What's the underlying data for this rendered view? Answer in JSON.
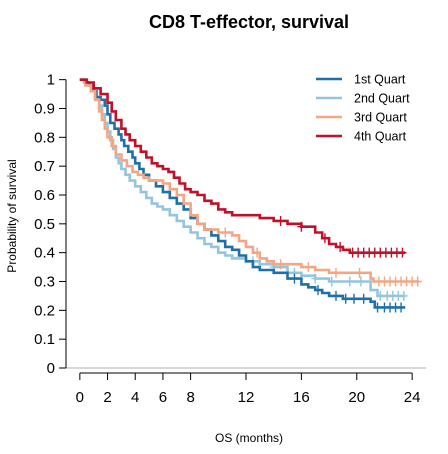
{
  "chart_data": {
    "type": "line",
    "subtype": "kaplan-meier",
    "title": "CD8 T-effector, survival",
    "xlabel": "OS (months)",
    "ylabel": "Probability of survival",
    "xlim": [
      -1,
      25
    ],
    "ylim": [
      0,
      1.03
    ],
    "xticks": [
      0,
      2,
      4,
      6,
      8,
      12,
      16,
      20,
      24
    ],
    "yticks": [
      0,
      0.1,
      0.2,
      0.3,
      0.4,
      0.5,
      0.6,
      0.7,
      0.8,
      0.9,
      1
    ],
    "ytick_labels": [
      "0",
      "0.1",
      "0.2",
      "0.3",
      "0.4",
      "0.5",
      "0.6",
      "0.7",
      "0.8",
      "0.9",
      "1"
    ],
    "reference_line_y": 0,
    "legend_position": "top-right",
    "grid": false,
    "series": [
      {
        "name": "1st Quart",
        "color": "#1f6fa8",
        "steps": [
          [
            0,
            1
          ],
          [
            0.4,
            0.99
          ],
          [
            0.7,
            0.98
          ],
          [
            0.9,
            0.97
          ],
          [
            1,
            0.96
          ],
          [
            1.2,
            0.94
          ],
          [
            1.5,
            0.93
          ],
          [
            1.8,
            0.91
          ],
          [
            2,
            0.88
          ],
          [
            2.2,
            0.85
          ],
          [
            2.5,
            0.83
          ],
          [
            2.8,
            0.81
          ],
          [
            3,
            0.79
          ],
          [
            3.2,
            0.77
          ],
          [
            3.5,
            0.75
          ],
          [
            3.8,
            0.73
          ],
          [
            4,
            0.71
          ],
          [
            4.3,
            0.69
          ],
          [
            4.6,
            0.67
          ],
          [
            5,
            0.65
          ],
          [
            5.5,
            0.63
          ],
          [
            6,
            0.61
          ],
          [
            6.5,
            0.59
          ],
          [
            7,
            0.57
          ],
          [
            7.5,
            0.55
          ],
          [
            8,
            0.52
          ],
          [
            8.5,
            0.5
          ],
          [
            9,
            0.48
          ],
          [
            9.5,
            0.46
          ],
          [
            10,
            0.44
          ],
          [
            10.5,
            0.42
          ],
          [
            11,
            0.41
          ],
          [
            11.5,
            0.39
          ],
          [
            12,
            0.37
          ],
          [
            12.5,
            0.35
          ],
          [
            13,
            0.34
          ],
          [
            14,
            0.33
          ],
          [
            15,
            0.31
          ],
          [
            16,
            0.29
          ],
          [
            16.5,
            0.28
          ],
          [
            17,
            0.27
          ],
          [
            17.5,
            0.26
          ],
          [
            18,
            0.25
          ],
          [
            19,
            0.24
          ],
          [
            20,
            0.24
          ],
          [
            21,
            0.23
          ],
          [
            21.3,
            0.21
          ],
          [
            21.8,
            0.21
          ],
          [
            23.5,
            0.21
          ]
        ],
        "censor_x": [
          15.5,
          17.2,
          18.5,
          19.2,
          19.8,
          20.5,
          21.5,
          22,
          22.4,
          22.8,
          23.2
        ]
      },
      {
        "name": "2nd Quart",
        "color": "#93c5de",
        "steps": [
          [
            0,
            1
          ],
          [
            0.3,
            0.99
          ],
          [
            0.6,
            0.98
          ],
          [
            0.9,
            0.96
          ],
          [
            1.1,
            0.94
          ],
          [
            1.4,
            0.91
          ],
          [
            1.6,
            0.88
          ],
          [
            1.8,
            0.85
          ],
          [
            2,
            0.82
          ],
          [
            2.2,
            0.79
          ],
          [
            2.4,
            0.76
          ],
          [
            2.6,
            0.73
          ],
          [
            2.8,
            0.71
          ],
          [
            3,
            0.69
          ],
          [
            3.3,
            0.67
          ],
          [
            3.6,
            0.65
          ],
          [
            4,
            0.63
          ],
          [
            4.4,
            0.61
          ],
          [
            4.8,
            0.59
          ],
          [
            5.2,
            0.57
          ],
          [
            5.6,
            0.56
          ],
          [
            6,
            0.55
          ],
          [
            6.5,
            0.53
          ],
          [
            7,
            0.51
          ],
          [
            7.5,
            0.49
          ],
          [
            8,
            0.47
          ],
          [
            8.5,
            0.45
          ],
          [
            9,
            0.43
          ],
          [
            9.5,
            0.42
          ],
          [
            10,
            0.4
          ],
          [
            10.5,
            0.39
          ],
          [
            11,
            0.38
          ],
          [
            12,
            0.37
          ],
          [
            13,
            0.36
          ],
          [
            14,
            0.35
          ],
          [
            15,
            0.33
          ],
          [
            16,
            0.32
          ],
          [
            17,
            0.31
          ],
          [
            18,
            0.3
          ],
          [
            19,
            0.3
          ],
          [
            21,
            0.27
          ],
          [
            21.5,
            0.25
          ],
          [
            23.5,
            0.25
          ]
        ],
        "censor_x": [
          12.5,
          14,
          15.5,
          17,
          18.2,
          19.5,
          20.3,
          21.7,
          22.2,
          22.6,
          23,
          23.4
        ]
      },
      {
        "name": "3rd Quart",
        "color": "#f4a582",
        "steps": [
          [
            0,
            1
          ],
          [
            0.4,
            0.98
          ],
          [
            0.8,
            0.96
          ],
          [
            1.1,
            0.93
          ],
          [
            1.4,
            0.89
          ],
          [
            1.6,
            0.86
          ],
          [
            1.8,
            0.83
          ],
          [
            2,
            0.8
          ],
          [
            2.3,
            0.77
          ],
          [
            2.6,
            0.74
          ],
          [
            3,
            0.72
          ],
          [
            3.4,
            0.7
          ],
          [
            3.8,
            0.68
          ],
          [
            4.2,
            0.67
          ],
          [
            4.6,
            0.66
          ],
          [
            5,
            0.65
          ],
          [
            5.5,
            0.65
          ],
          [
            6,
            0.64
          ],
          [
            6.5,
            0.62
          ],
          [
            7,
            0.6
          ],
          [
            7.5,
            0.57
          ],
          [
            8,
            0.53
          ],
          [
            8.5,
            0.5
          ],
          [
            9,
            0.48
          ],
          [
            10,
            0.47
          ],
          [
            11,
            0.46
          ],
          [
            11.5,
            0.44
          ],
          [
            12,
            0.42
          ],
          [
            12.5,
            0.4
          ],
          [
            13,
            0.38
          ],
          [
            13.5,
            0.37
          ],
          [
            14,
            0.36
          ],
          [
            15,
            0.36
          ],
          [
            16,
            0.35
          ],
          [
            17,
            0.34
          ],
          [
            18,
            0.33
          ],
          [
            20,
            0.33
          ],
          [
            21,
            0.31
          ],
          [
            21.2,
            0.3
          ],
          [
            24.5,
            0.3
          ]
        ],
        "censor_x": [
          10.5,
          12.8,
          14.5,
          16.5,
          18.5,
          20.2,
          21.6,
          22,
          22.4,
          22.8,
          23.2,
          23.6,
          24,
          24.4
        ]
      },
      {
        "name": "4th Quart",
        "color": "#c0102a",
        "steps": [
          [
            0,
            1
          ],
          [
            0.5,
            0.99
          ],
          [
            1,
            0.97
          ],
          [
            1.5,
            0.95
          ],
          [
            2,
            0.92
          ],
          [
            2.3,
            0.89
          ],
          [
            2.6,
            0.86
          ],
          [
            3,
            0.83
          ],
          [
            3.3,
            0.81
          ],
          [
            3.6,
            0.79
          ],
          [
            4,
            0.77
          ],
          [
            4.4,
            0.75
          ],
          [
            4.8,
            0.73
          ],
          [
            5.2,
            0.71
          ],
          [
            5.6,
            0.7
          ],
          [
            6,
            0.69
          ],
          [
            6.4,
            0.68
          ],
          [
            6.8,
            0.66
          ],
          [
            7.2,
            0.64
          ],
          [
            7.6,
            0.62
          ],
          [
            8,
            0.61
          ],
          [
            8.5,
            0.6
          ],
          [
            9,
            0.58
          ],
          [
            9.5,
            0.57
          ],
          [
            10,
            0.55
          ],
          [
            10.5,
            0.54
          ],
          [
            11,
            0.53
          ],
          [
            12,
            0.53
          ],
          [
            13,
            0.52
          ],
          [
            14,
            0.51
          ],
          [
            15,
            0.5
          ],
          [
            16,
            0.49
          ],
          [
            17,
            0.47
          ],
          [
            17.5,
            0.45
          ],
          [
            18,
            0.43
          ],
          [
            18.5,
            0.42
          ],
          [
            19,
            0.41
          ],
          [
            19.5,
            0.4
          ],
          [
            23.5,
            0.4
          ]
        ],
        "censor_x": [
          14.5,
          16,
          17.7,
          18.8,
          19.7,
          20.1,
          20.5,
          20.9,
          21.3,
          21.7,
          22.1,
          22.5,
          22.9,
          23.3
        ]
      }
    ]
  }
}
